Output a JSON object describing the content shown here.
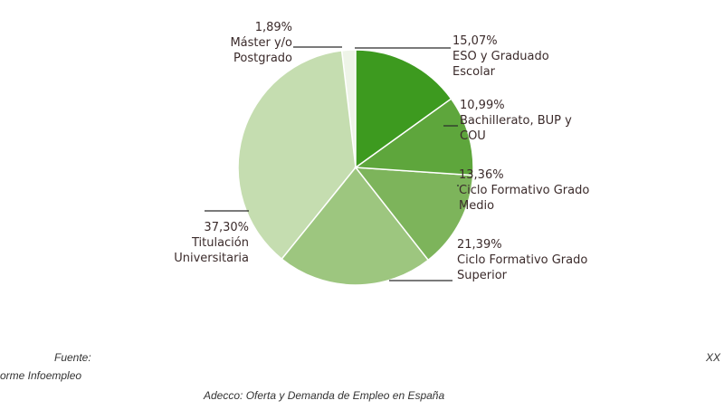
{
  "chart_data": {
    "type": "pie",
    "categories": [
      "ESO y Graduado Escolar",
      "Bachillerato, BUP y COU",
      "Ciclo Formativo Grado Medio",
      "Ciclo Formativo Grado Superior",
      "Titulación Universitaria",
      "Máster y/o Postgrado"
    ],
    "values": [
      15.07,
      10.99,
      13.36,
      21.39,
      37.3,
      1.89
    ],
    "value_labels": [
      "15,07%",
      "10,99%",
      "13,36%",
      "21,39%",
      "37,30%",
      "1,89%"
    ],
    "colors": [
      "#3d9a1f",
      "#5ea63c",
      "#7db45b",
      "#9dc67f",
      "#c5ddb0",
      "#eef4e8"
    ]
  },
  "source": [
    "Fuente:",
    "orme Infoempleo",
    "Adecco: Oferta y Demanda de Empleo en España",
    "XX"
  ]
}
